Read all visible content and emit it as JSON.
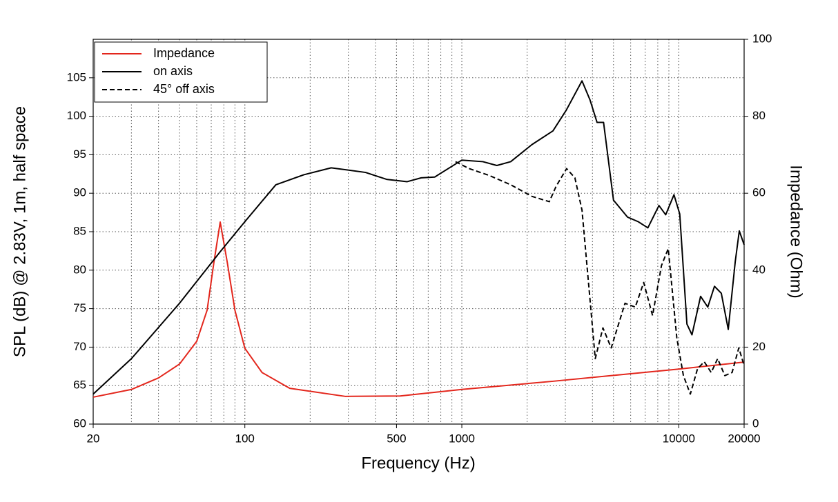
{
  "chart_data": {
    "type": "line",
    "xlabel": "Frequency (Hz)",
    "ylabel": "SPL (dB) @ 2.83V, 1m, half space",
    "y2label": "Impedance (Ohm)",
    "xscale": "log",
    "xlim": [
      20,
      20000
    ],
    "xticks": [
      20,
      100,
      500,
      1000,
      10000,
      20000
    ],
    "ylim": [
      60,
      110
    ],
    "yticks": [
      60,
      65,
      70,
      75,
      80,
      85,
      90,
      95,
      100,
      105
    ],
    "y2lim": [
      0,
      100
    ],
    "y2ticks": [
      0,
      20,
      40,
      60,
      80,
      100
    ],
    "grid": true,
    "legend": "upper left",
    "series": [
      {
        "name": "Impedance",
        "color": "#e3261c",
        "axis": "y2",
        "style": "solid",
        "x": [
          20,
          30,
          40,
          50,
          60,
          67,
          72,
          77,
          83,
          90,
          100,
          120,
          161,
          290,
          520,
          1000,
          2600,
          10000,
          20000
        ],
        "values": [
          7.0,
          9.0,
          12.0,
          15.6,
          21.5,
          29.6,
          42,
          52.5,
          42,
          29.6,
          19.7,
          13.4,
          9.3,
          7.2,
          7.3,
          9.0,
          11.1,
          14.3,
          16.1
        ]
      },
      {
        "name": "on axis",
        "color": "#000000",
        "axis": "y",
        "style": "solid",
        "x": [
          20,
          30,
          50,
          77,
          100,
          139,
          187,
          250,
          360,
          450,
          560,
          650,
          750,
          1000,
          1250,
          1450,
          1680,
          2100,
          2630,
          3030,
          3580,
          3900,
          4200,
          4500,
          5000,
          5800,
          6500,
          7200,
          8100,
          8700,
          9500,
          10100,
          10900,
          11500,
          12600,
          13600,
          14600,
          15700,
          16900,
          18200,
          19000,
          20000
        ],
        "values": [
          63.9,
          68.5,
          75.7,
          82.4,
          86.3,
          91.1,
          92.4,
          93.3,
          92.7,
          91.8,
          91.5,
          92.0,
          92.1,
          94.3,
          94.1,
          93.6,
          94.1,
          96.3,
          98.1,
          100.8,
          104.6,
          102.1,
          99.2,
          99.2,
          89.1,
          86.9,
          86.3,
          85.5,
          88.4,
          87.2,
          89.8,
          87.3,
          73.0,
          71.6,
          76.6,
          75.2,
          77.9,
          77.0,
          72.3,
          81.1,
          85.1,
          83.3
        ]
      },
      {
        "name": "45° off axis",
        "color": "#000000",
        "axis": "y",
        "style": "dashed",
        "x": [
          935,
          1080,
          1340,
          1680,
          2100,
          2530,
          2720,
          3040,
          3320,
          3580,
          3860,
          4120,
          4470,
          4880,
          5650,
          6300,
          6890,
          7570,
          8320,
          8940,
          9790,
          10500,
          11300,
          12200,
          13100,
          14100,
          15100,
          16300,
          17600,
          18900,
          20000
        ],
        "values": [
          94.1,
          93.2,
          92.3,
          91.1,
          89.6,
          88.9,
          90.9,
          93.2,
          92.0,
          87.8,
          77.5,
          68.5,
          72.5,
          69.9,
          75.7,
          75.2,
          78.4,
          74.1,
          80.6,
          82.8,
          71.2,
          66.3,
          63.9,
          67.2,
          68.1,
          66.7,
          68.5,
          66.3,
          66.7,
          69.9,
          67.6
        ]
      }
    ]
  }
}
